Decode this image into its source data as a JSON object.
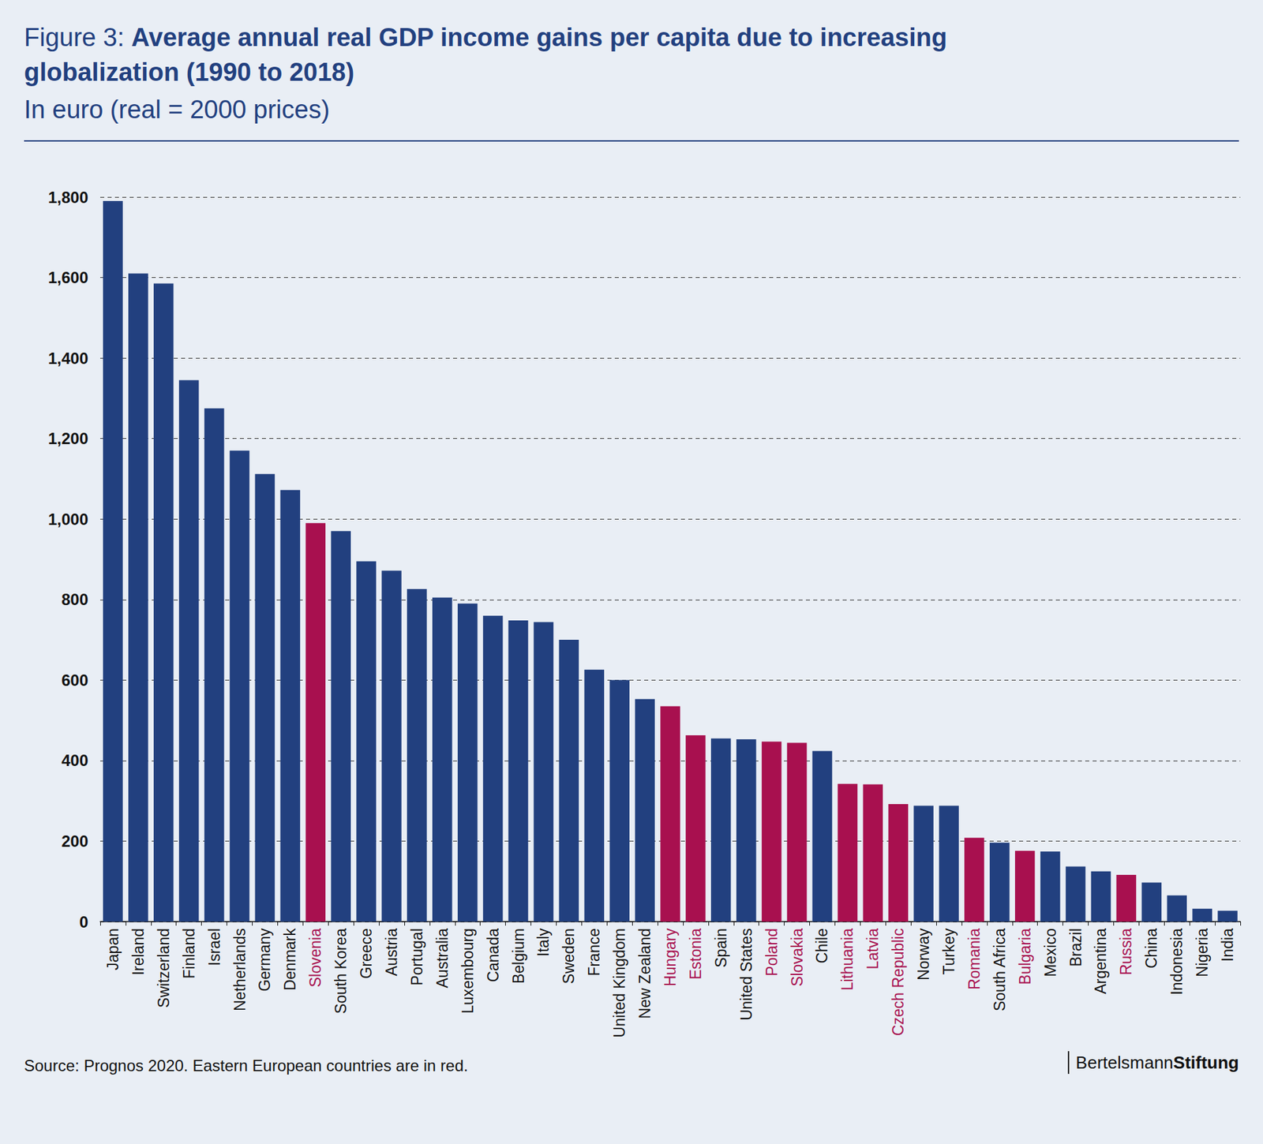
{
  "chart_data": {
    "type": "bar",
    "figure_label": "Figure 3:",
    "title": "Average annual real GDP income gains per capita due to increasing globalization (1990 to 2018)",
    "subtitle": "In euro (real = 2000 prices)",
    "source": "Source: Prognos 2020. Eastern European countries are in red.",
    "brand": [
      "Bertelsmann",
      "Stiftung"
    ],
    "categories": [
      "Japan",
      "Ireland",
      "Switzerland",
      "Finland",
      "Israel",
      "Netherlands",
      "Germany",
      "Denmark",
      "Slovenia",
      "South Korea",
      "Greece",
      "Austria",
      "Portugal",
      "Australia",
      "Luxembourg",
      "Canada",
      "Belgium",
      "Italy",
      "Sweden",
      "France",
      "United Kingdom",
      "New Zealand",
      "Hungary",
      "Estonia",
      "Spain",
      "United States",
      "Poland",
      "Slovakia",
      "Chile",
      "Lithuania",
      "Latvia",
      "Czech Republic",
      "Norway",
      "Turkey",
      "Romania",
      "South Africa",
      "Bulgaria",
      "Mexico",
      "Brazil",
      "Argentina",
      "Russia",
      "China",
      "Indonesia",
      "Nigeria",
      "India"
    ],
    "values": [
      1790,
      1610,
      1585,
      1345,
      1275,
      1170,
      1112,
      1072,
      990,
      970,
      895,
      872,
      826,
      805,
      790,
      760,
      748,
      744,
      700,
      626,
      600,
      553,
      535,
      463,
      455,
      453,
      447,
      444,
      424,
      342,
      341,
      292,
      288,
      288,
      208,
      196,
      176,
      174,
      137,
      125,
      116,
      97,
      65,
      32,
      27
    ],
    "colors": [
      "#22407f",
      "#22407f",
      "#22407f",
      "#22407f",
      "#22407f",
      "#22407f",
      "#22407f",
      "#22407f",
      "#a8104f",
      "#22407f",
      "#22407f",
      "#22407f",
      "#22407f",
      "#22407f",
      "#22407f",
      "#22407f",
      "#22407f",
      "#22407f",
      "#22407f",
      "#22407f",
      "#22407f",
      "#22407f",
      "#a8104f",
      "#a8104f",
      "#22407f",
      "#22407f",
      "#a8104f",
      "#a8104f",
      "#22407f",
      "#a8104f",
      "#a8104f",
      "#a8104f",
      "#22407f",
      "#22407f",
      "#a8104f",
      "#22407f",
      "#a8104f",
      "#22407f",
      "#22407f",
      "#22407f",
      "#a8104f",
      "#22407f",
      "#22407f",
      "#22407f",
      "#22407f"
    ],
    "ylim": [
      0,
      1800
    ],
    "yticks": [
      0,
      200,
      400,
      600,
      800,
      {
        "value": 1000,
        "label": "1,000"
      },
      {
        "value": 1200,
        "label": "1,200"
      },
      {
        "value": 1400,
        "label": "1,400"
      },
      {
        "value": 1600,
        "label": "1,600"
      },
      {
        "value": 1800,
        "label": "1,800"
      }
    ],
    "grid": true
  }
}
